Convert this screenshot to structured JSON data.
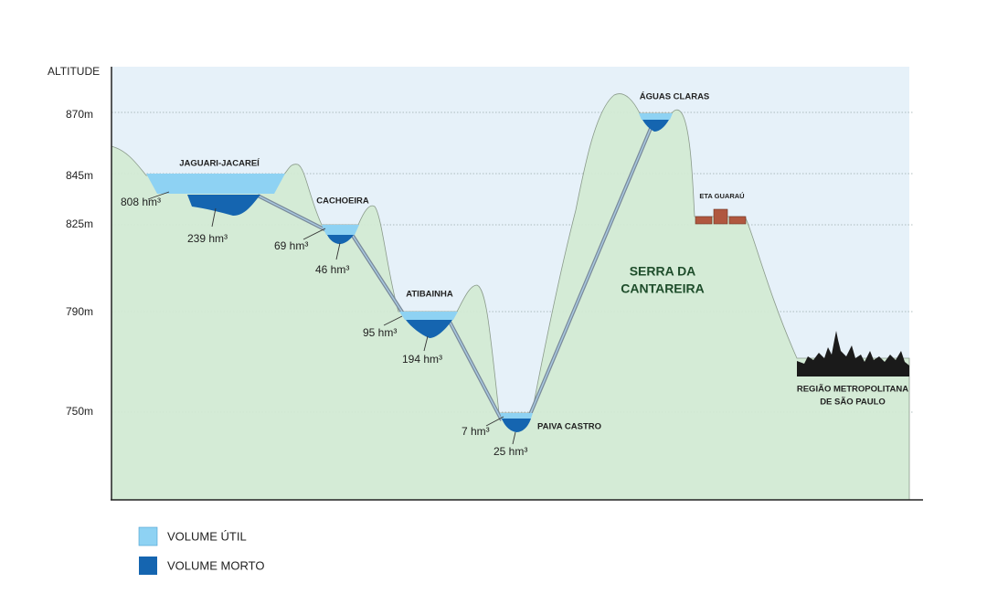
{
  "axis": {
    "title": "ALTITUDE",
    "ticks": [
      "870m",
      "845m",
      "825m",
      "790m",
      "750m"
    ]
  },
  "reservoirs": [
    {
      "name": "JAGUARI-JACAREÍ",
      "volume_util": "808 hm³",
      "volume_morto": "239 hm³"
    },
    {
      "name": "CACHOEIRA",
      "volume_util": "69 hm³",
      "volume_morto": "46 hm³"
    },
    {
      "name": "ATIBAINHA",
      "volume_util": "95 hm³",
      "volume_morto": "194 hm³"
    },
    {
      "name": "PAIVA CASTRO",
      "volume_util": "7 hm³",
      "volume_morto": "25 hm³"
    },
    {
      "name": "ÁGUAS CLARAS"
    }
  ],
  "labels": {
    "eta": "ETA GUARAÚ",
    "serra": [
      "SERRA DA",
      "CANTAREIRA"
    ],
    "regiao": [
      "REGIÃO METROPOLITANA",
      "DE SÃO PAULO"
    ]
  },
  "legend": [
    "VOLUME ÚTIL",
    "VOLUME MORTO"
  ]
}
